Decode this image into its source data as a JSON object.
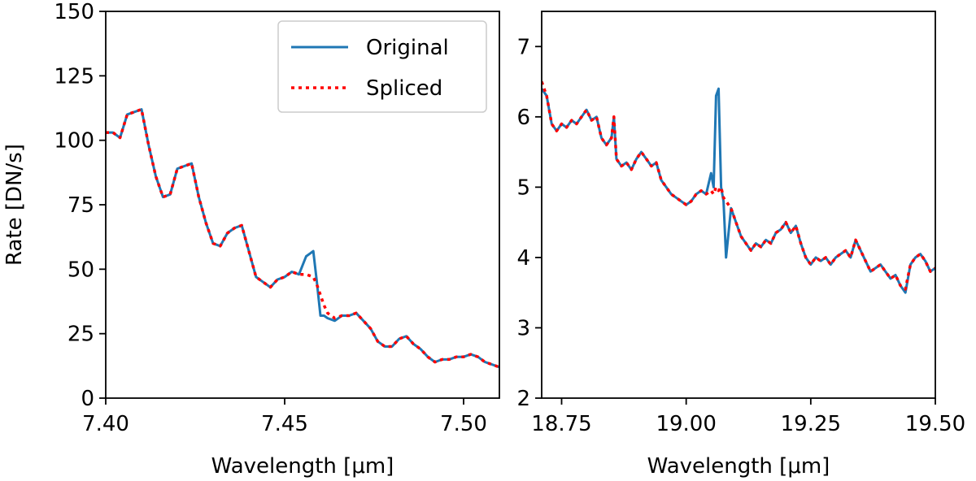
{
  "figure": {
    "ylabel_left": "Rate [DN/s]"
  },
  "chart_data": [
    {
      "type": "line",
      "xlabel": "Wavelength [μm]",
      "ylabel": "Rate [DN/s]",
      "xlim": [
        7.4,
        7.51
      ],
      "ylim": [
        0,
        150
      ],
      "xticks": [
        7.4,
        7.45,
        7.5
      ],
      "xtick_labels": [
        "7.40",
        "7.45",
        "7.50"
      ],
      "yticks": [
        0,
        25,
        50,
        75,
        100,
        125,
        150
      ],
      "ytick_labels": [
        "0",
        "25",
        "50",
        "75",
        "100",
        "125",
        "150"
      ],
      "legend": {
        "position": "top-right",
        "entries": [
          "Original",
          "Spliced"
        ]
      },
      "grid": false,
      "colors": {
        "original": "#1f77b4",
        "spliced": "#ff0000"
      },
      "series": [
        {
          "name": "Original",
          "style": "solid",
          "x": [
            7.4,
            7.402,
            7.404,
            7.406,
            7.408,
            7.41,
            7.412,
            7.414,
            7.416,
            7.418,
            7.42,
            7.422,
            7.424,
            7.426,
            7.428,
            7.43,
            7.432,
            7.434,
            7.436,
            7.438,
            7.44,
            7.442,
            7.444,
            7.446,
            7.448,
            7.45,
            7.452,
            7.454,
            7.456,
            7.458,
            7.459,
            7.46,
            7.461,
            7.462,
            7.464,
            7.466,
            7.468,
            7.47,
            7.472,
            7.474,
            7.476,
            7.478,
            7.48,
            7.482,
            7.484,
            7.486,
            7.488,
            7.49,
            7.492,
            7.494,
            7.496,
            7.498,
            7.5,
            7.502,
            7.504,
            7.506,
            7.508,
            7.51
          ],
          "y": [
            103,
            103,
            101,
            110,
            111,
            112,
            98,
            86,
            78,
            79,
            89,
            90,
            91,
            78,
            68,
            60,
            59,
            64,
            66,
            67,
            57,
            47,
            45,
            43,
            46,
            47,
            49,
            48,
            55,
            57,
            45,
            32,
            32,
            31,
            30,
            32,
            32,
            33,
            30,
            27,
            22,
            20,
            20,
            23,
            24,
            21,
            19,
            16,
            14,
            15,
            15,
            16,
            16,
            17,
            16,
            14,
            13,
            12
          ]
        },
        {
          "name": "Spliced",
          "style": "dotted",
          "x": [
            7.4,
            7.402,
            7.404,
            7.406,
            7.408,
            7.41,
            7.412,
            7.414,
            7.416,
            7.418,
            7.42,
            7.422,
            7.424,
            7.426,
            7.428,
            7.43,
            7.432,
            7.434,
            7.436,
            7.438,
            7.44,
            7.442,
            7.444,
            7.446,
            7.448,
            7.45,
            7.452,
            7.454,
            7.456,
            7.458,
            7.459,
            7.46,
            7.461,
            7.462,
            7.464,
            7.466,
            7.468,
            7.47,
            7.472,
            7.474,
            7.476,
            7.478,
            7.48,
            7.482,
            7.484,
            7.486,
            7.488,
            7.49,
            7.492,
            7.494,
            7.496,
            7.498,
            7.5,
            7.502,
            7.504,
            7.506,
            7.508,
            7.51
          ],
          "y": [
            103,
            103,
            101,
            110,
            111,
            112,
            98,
            86,
            78,
            79,
            89,
            90,
            91,
            78,
            68,
            60,
            59,
            64,
            66,
            67,
            57,
            47,
            45,
            43,
            46,
            47,
            49,
            48,
            48,
            47,
            44,
            40,
            36,
            33,
            31,
            32,
            32,
            33,
            30,
            27,
            22,
            20,
            20,
            23,
            24,
            21,
            19,
            16,
            14,
            15,
            15,
            16,
            16,
            17,
            16,
            14,
            13,
            12
          ]
        }
      ]
    },
    {
      "type": "line",
      "xlabel": "Wavelength [μm]",
      "ylabel": "",
      "xlim": [
        18.71,
        19.5
      ],
      "ylim": [
        2,
        7.5
      ],
      "xticks": [
        18.75,
        19.0,
        19.25,
        19.5
      ],
      "xtick_labels": [
        "18.75",
        "19.00",
        "19.25",
        "19.50"
      ],
      "yticks": [
        2,
        3,
        4,
        5,
        6,
        7
      ],
      "ytick_labels": [
        "2",
        "3",
        "4",
        "5",
        "6",
        "7"
      ],
      "grid": false,
      "colors": {
        "original": "#1f77b4",
        "spliced": "#ff0000"
      },
      "series": [
        {
          "name": "Original",
          "style": "solid",
          "x": [
            18.71,
            18.72,
            18.73,
            18.74,
            18.75,
            18.76,
            18.77,
            18.78,
            18.79,
            18.8,
            18.81,
            18.82,
            18.83,
            18.84,
            18.85,
            18.855,
            18.86,
            18.87,
            18.88,
            18.89,
            18.9,
            18.91,
            18.92,
            18.93,
            18.94,
            18.95,
            18.96,
            18.97,
            18.98,
            18.99,
            19.0,
            19.01,
            19.02,
            19.03,
            19.04,
            19.05,
            19.055,
            19.06,
            19.065,
            19.07,
            19.075,
            19.08,
            19.09,
            19.1,
            19.11,
            19.12,
            19.13,
            19.14,
            19.15,
            19.16,
            19.17,
            19.18,
            19.19,
            19.2,
            19.21,
            19.22,
            19.23,
            19.24,
            19.25,
            19.26,
            19.27,
            19.28,
            19.29,
            19.3,
            19.31,
            19.32,
            19.33,
            19.34,
            19.35,
            19.36,
            19.37,
            19.38,
            19.39,
            19.4,
            19.41,
            19.42,
            19.43,
            19.44,
            19.45,
            19.46,
            19.47,
            19.48,
            19.49,
            19.5
          ],
          "y": [
            6.4,
            6.3,
            5.9,
            5.8,
            5.9,
            5.85,
            5.95,
            5.9,
            6.0,
            6.1,
            5.95,
            6.0,
            5.7,
            5.6,
            5.7,
            6.0,
            5.4,
            5.3,
            5.35,
            5.25,
            5.4,
            5.5,
            5.4,
            5.3,
            5.35,
            5.1,
            5.0,
            4.9,
            4.85,
            4.8,
            4.75,
            4.8,
            4.9,
            4.95,
            4.9,
            5.2,
            5.0,
            6.3,
            6.4,
            5.0,
            4.8,
            4.0,
            4.7,
            4.5,
            4.3,
            4.2,
            4.1,
            4.2,
            4.15,
            4.25,
            4.2,
            4.35,
            4.4,
            4.5,
            4.35,
            4.45,
            4.2,
            4.0,
            3.9,
            4.0,
            3.95,
            4.0,
            3.9,
            4.0,
            4.05,
            4.1,
            4.0,
            4.25,
            4.1,
            3.95,
            3.8,
            3.85,
            3.9,
            3.8,
            3.7,
            3.75,
            3.6,
            3.5,
            3.9,
            4.0,
            4.05,
            3.95,
            3.8,
            3.85
          ]
        },
        {
          "name": "Spliced",
          "style": "dotted",
          "x": [
            18.71,
            18.72,
            18.73,
            18.74,
            18.75,
            18.76,
            18.77,
            18.78,
            18.79,
            18.8,
            18.81,
            18.82,
            18.83,
            18.84,
            18.85,
            18.855,
            18.86,
            18.87,
            18.88,
            18.89,
            18.9,
            18.91,
            18.92,
            18.93,
            18.94,
            18.95,
            18.96,
            18.97,
            18.98,
            18.99,
            19.0,
            19.01,
            19.02,
            19.03,
            19.04,
            19.05,
            19.055,
            19.06,
            19.065,
            19.07,
            19.075,
            19.08,
            19.09,
            19.1,
            19.11,
            19.12,
            19.13,
            19.14,
            19.15,
            19.16,
            19.17,
            19.18,
            19.19,
            19.2,
            19.21,
            19.22,
            19.23,
            19.24,
            19.25,
            19.26,
            19.27,
            19.28,
            19.29,
            19.3,
            19.31,
            19.32,
            19.33,
            19.34,
            19.35,
            19.36,
            19.37,
            19.38,
            19.39,
            19.4,
            19.41,
            19.42,
            19.43,
            19.44,
            19.45,
            19.46,
            19.47,
            19.48,
            19.49,
            19.5
          ],
          "y": [
            6.5,
            6.3,
            5.9,
            5.8,
            5.9,
            5.85,
            5.95,
            5.9,
            6.0,
            6.1,
            5.95,
            6.0,
            5.7,
            5.6,
            5.7,
            6.0,
            5.4,
            5.3,
            5.35,
            5.25,
            5.4,
            5.5,
            5.4,
            5.3,
            5.35,
            5.1,
            5.0,
            4.9,
            4.85,
            4.8,
            4.75,
            4.8,
            4.9,
            4.95,
            4.9,
            4.95,
            4.9,
            5.0,
            4.95,
            5.0,
            4.85,
            4.8,
            4.7,
            4.5,
            4.3,
            4.2,
            4.1,
            4.2,
            4.15,
            4.25,
            4.2,
            4.35,
            4.4,
            4.5,
            4.35,
            4.45,
            4.2,
            4.0,
            3.9,
            4.0,
            3.95,
            4.0,
            3.9,
            4.0,
            4.05,
            4.1,
            4.0,
            4.25,
            4.1,
            3.95,
            3.8,
            3.85,
            3.9,
            3.8,
            3.7,
            3.75,
            3.6,
            3.55,
            3.9,
            4.0,
            4.05,
            3.95,
            3.8,
            3.85
          ]
        }
      ]
    }
  ]
}
